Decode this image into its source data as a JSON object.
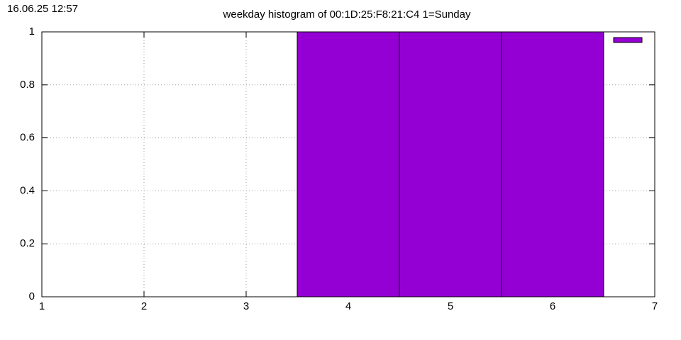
{
  "chart_data": {
    "type": "bar",
    "title": "weekday histogram of 00:1D:25:F8:21:C4 1=Sunday",
    "timestamp": "16.06.25 12:57",
    "x": [
      4,
      5,
      6
    ],
    "values": [
      1,
      1,
      1
    ],
    "bar_width": 1,
    "color": "#9400d3",
    "xlim": [
      1,
      7
    ],
    "xticks": [
      1,
      2,
      3,
      4,
      5,
      6,
      7
    ],
    "ylim": [
      0,
      1
    ],
    "yticks": [
      0,
      0.2,
      0.4,
      0.6,
      0.8,
      1
    ],
    "grid": true,
    "legend": "top-right"
  }
}
